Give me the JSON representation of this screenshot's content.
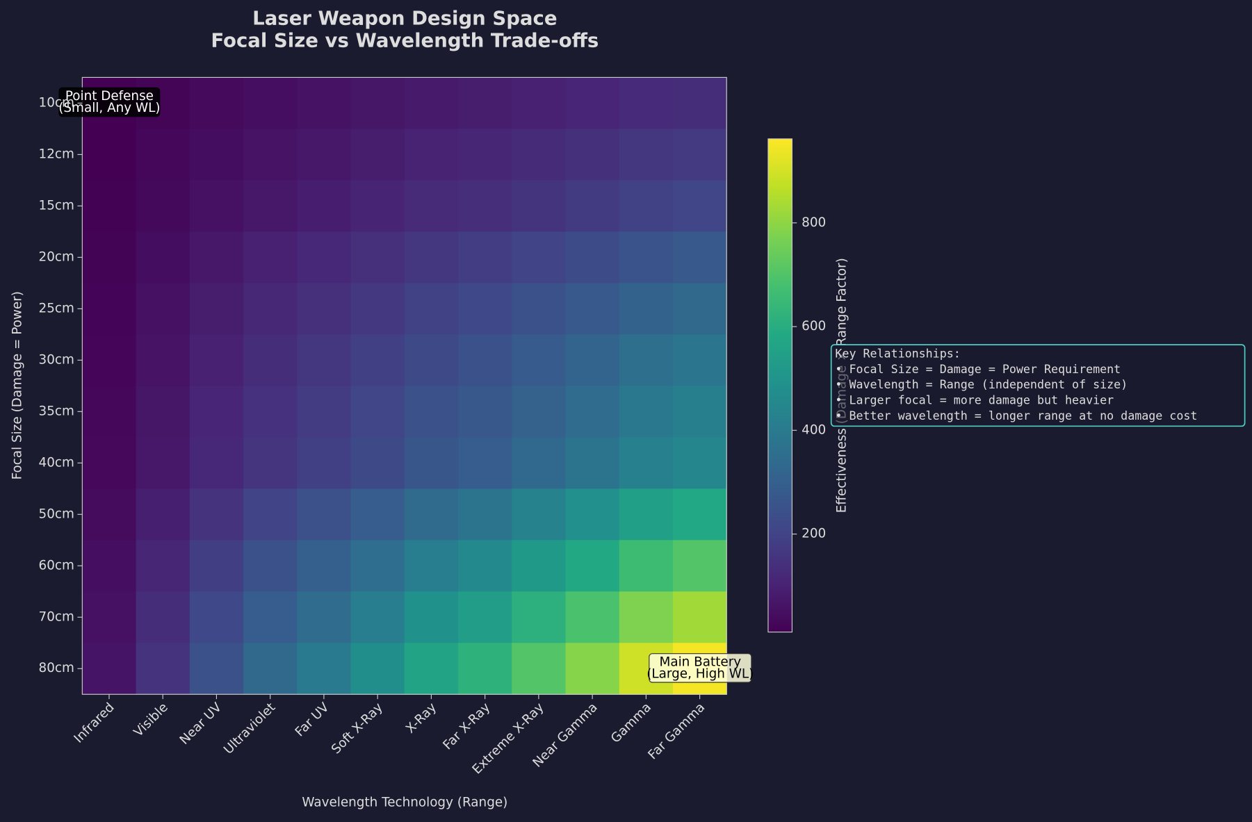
{
  "chart_data": {
    "type": "heatmap",
    "title": [
      "Laser Weapon Design Space",
      "Focal Size vs Wavelength Trade-offs"
    ],
    "x_label": "Wavelength Technology (Range)",
    "y_label": "Focal Size (Damage = Power)",
    "colorbar_label": "Effectiveness (Damage × Range Factor)",
    "colormap": "viridis",
    "clim": [
      11,
      962
    ],
    "colorbar_ticks": [
      200,
      400,
      600,
      800
    ],
    "x_categories": [
      "Infrared",
      "Visible",
      "Near UV",
      "Ultraviolet",
      "Far UV",
      "Soft X-Ray",
      "X-Ray",
      "Far X-Ray",
      "Extreme X-Ray",
      "Near Gamma",
      "Gamma",
      "Far Gamma"
    ],
    "y_categories": [
      "10cm",
      "12cm",
      "15cm",
      "20cm",
      "25cm",
      "30cm",
      "35cm",
      "40cm",
      "50cm",
      "60cm",
      "70cm",
      "80cm"
    ],
    "values": [
      [
        9,
        21,
        35,
        47,
        56,
        67,
        78,
        86,
        98,
        110,
        125,
        133
      ],
      [
        11,
        27,
        44,
        60,
        72,
        86,
        101,
        111,
        127,
        142,
        161,
        171
      ],
      [
        14,
        33,
        54,
        73,
        88,
        105,
        123,
        136,
        155,
        173,
        196,
        209
      ],
      [
        18,
        44,
        72,
        97,
        116,
        138,
        163,
        179,
        204,
        229,
        259,
        276
      ],
      [
        22,
        53,
        87,
        117,
        140,
        167,
        196,
        216,
        246,
        276,
        313,
        333
      ],
      [
        25,
        61,
        99,
        133,
        160,
        190,
        224,
        247,
        281,
        315,
        357,
        380
      ],
      [
        27,
        67,
        109,
        146,
        176,
        209,
        247,
        272,
        309,
        347,
        393,
        418
      ],
      [
        29,
        72,
        116,
        156,
        188,
        224,
        264,
        291,
        331,
        371,
        420,
        447
      ],
      [
        38,
        93,
        151,
        203,
        244,
        290,
        342,
        377,
        429,
        481,
        545,
        580
      ],
      [
        46,
        112,
        183,
        246,
        295,
        352,
        415,
        457,
        520,
        583,
        661,
        703
      ],
      [
        54,
        132,
        215,
        289,
        347,
        414,
        488,
        538,
        612,
        686,
        777,
        827
      ],
      [
        62,
        152,
        247,
        333,
        399,
        475,
        561,
        618,
        703,
        789,
        893,
        950
      ]
    ],
    "annotations": [
      {
        "lines": [
          "Point Defense",
          "(Small, Any WL)"
        ]
      },
      {
        "lines": [
          "Main Battery",
          "(Large, High WL)"
        ]
      }
    ],
    "legend_box": {
      "lines": [
        "Key Relationships:",
        "• Focal Size = Damage = Power Requirement",
        "• Wavelength = Range (independent of size)",
        "• Larger focal = more damage but heavier",
        "• Better wavelength = longer range at no damage cost"
      ]
    }
  }
}
